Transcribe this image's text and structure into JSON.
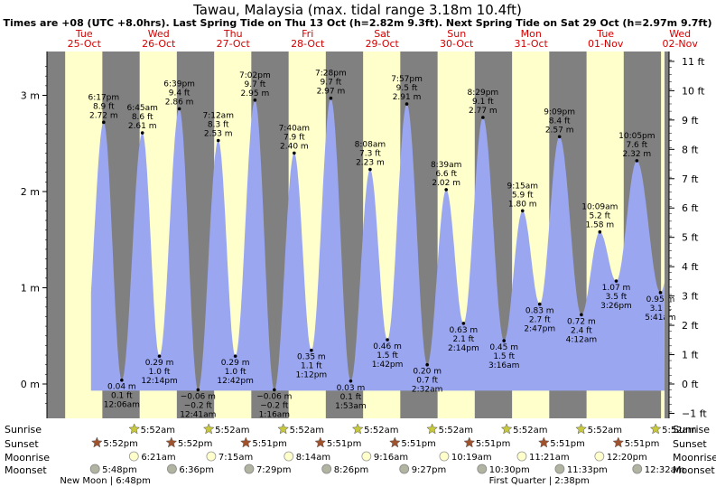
{
  "chart_data": {
    "type": "area",
    "title": "Tawau, Malaysia (max. tidal range 3.18m 10.4ft)",
    "subtitle": "Times are +08 (UTC +8.0hrs). Last Spring Tide on Thu 13 Oct (h=2.82m 9.3ft). Next Spring Tide on Sat 29 Oct (h=2.97m 9.7ft)",
    "x_unit": "hours since Tue 25-Oct 00:00",
    "xlim": [
      0,
      199
    ],
    "ylim_m": [
      -0.3,
      3.4
    ],
    "ylim_ft": [
      -1.2,
      11.2
    ],
    "days": [
      {
        "dow": "Tue",
        "date": "25-Oct"
      },
      {
        "dow": "Wed",
        "date": "26-Oct"
      },
      {
        "dow": "Thu",
        "date": "27-Oct"
      },
      {
        "dow": "Fri",
        "date": "28-Oct"
      },
      {
        "dow": "Sat",
        "date": "29-Oct"
      },
      {
        "dow": "Sun",
        "date": "30-Oct"
      },
      {
        "dow": "Mon",
        "date": "31-Oct"
      },
      {
        "dow": "Tue",
        "date": "01-Nov"
      },
      {
        "dow": "Wed",
        "date": "02-Nov"
      }
    ],
    "left_ticks": [
      {
        "v": 0,
        "label": "0 m"
      },
      {
        "v": 1,
        "label": "1 m"
      },
      {
        "v": 2,
        "label": "2 m"
      },
      {
        "v": 3,
        "label": "3 m"
      }
    ],
    "right_ticks": [
      {
        "v": -1,
        "label": "−1 ft"
      },
      {
        "v": 0,
        "label": "0 ft"
      },
      {
        "v": 1,
        "label": "1 ft"
      },
      {
        "v": 2,
        "label": "2 ft"
      },
      {
        "v": 3,
        "label": "3 ft"
      },
      {
        "v": 4,
        "label": "4 ft"
      },
      {
        "v": 5,
        "label": "5 ft"
      },
      {
        "v": 6,
        "label": "6 ft"
      },
      {
        "v": 7,
        "label": "7 ft"
      },
      {
        "v": 8,
        "label": "8 ft"
      },
      {
        "v": 9,
        "label": "9 ft"
      },
      {
        "v": 10,
        "label": "10 ft"
      },
      {
        "v": 11,
        "label": "11 ft"
      }
    ],
    "tides": [
      {
        "t": 18.28,
        "h": 2.72,
        "time": "6:17 pm",
        "ft": "8.9 ft",
        "m": "2.72 m",
        "type": "high"
      },
      {
        "t": 24.1,
        "h": 0.04,
        "time": "12:06 am",
        "ft": "0.1 ft",
        "m": "0.04 m",
        "type": "low"
      },
      {
        "t": 30.75,
        "h": 2.61,
        "time": "6:45 am",
        "ft": "8.6 ft",
        "m": "2.61 m",
        "type": "high"
      },
      {
        "t": 36.23,
        "h": 0.29,
        "time": "12:14 pm",
        "ft": "1.0 ft",
        "m": "0.29 m",
        "type": "low"
      },
      {
        "t": 42.65,
        "h": 2.86,
        "time": "6:39 pm",
        "ft": "9.4 ft",
        "m": "2.86 m",
        "type": "high"
      },
      {
        "t": 48.68,
        "h": -0.06,
        "time": "12:41 am",
        "ft": "−0.2 ft",
        "m": "−0.06 m",
        "type": "low"
      },
      {
        "t": 55.2,
        "h": 2.53,
        "time": "7:12 am",
        "ft": "8.3 ft",
        "m": "2.53 m",
        "type": "high"
      },
      {
        "t": 60.7,
        "h": 0.29,
        "time": "12:42 pm",
        "ft": "1.0 ft",
        "m": "0.29 m",
        "type": "low"
      },
      {
        "t": 67.03,
        "h": 2.95,
        "time": "7:02 pm",
        "ft": "9.7 ft",
        "m": "2.95 m",
        "type": "high"
      },
      {
        "t": 73.27,
        "h": -0.06,
        "time": "1:16 am",
        "ft": "−0.2 ft",
        "m": "−0.06 m",
        "type": "low"
      },
      {
        "t": 79.67,
        "h": 2.4,
        "time": "7:40 am",
        "ft": "7.9 ft",
        "m": "2.40 m",
        "type": "high"
      },
      {
        "t": 85.2,
        "h": 0.35,
        "time": "1:12 pm",
        "ft": "1.1 ft",
        "m": "0.35 m",
        "type": "low"
      },
      {
        "t": 91.47,
        "h": 2.97,
        "time": "7:28 pm",
        "ft": "9.7 ft",
        "m": "2.97 m",
        "type": "high"
      },
      {
        "t": 97.88,
        "h": 0.03,
        "time": "1:53 am",
        "ft": "0.1 ft",
        "m": "0.03 m",
        "type": "low"
      },
      {
        "t": 104.13,
        "h": 2.23,
        "time": "8:08 am",
        "ft": "7.3 ft",
        "m": "2.23 m",
        "type": "high"
      },
      {
        "t": 109.7,
        "h": 0.46,
        "time": "1:42 pm",
        "ft": "1.5 ft",
        "m": "0.46 m",
        "type": "low"
      },
      {
        "t": 115.95,
        "h": 2.91,
        "time": "7:57 pm",
        "ft": "9.5 ft",
        "m": "2.91 m",
        "type": "high"
      },
      {
        "t": 122.53,
        "h": 0.2,
        "time": "2:32 am",
        "ft": "0.7 ft",
        "m": "0.20 m",
        "type": "low"
      },
      {
        "t": 128.65,
        "h": 2.02,
        "time": "8:39 am",
        "ft": "6.6 ft",
        "m": "2.02 m",
        "type": "high"
      },
      {
        "t": 134.23,
        "h": 0.63,
        "time": "2:14 pm",
        "ft": "2.1 ft",
        "m": "0.63 m",
        "type": "low"
      },
      {
        "t": 140.48,
        "h": 2.77,
        "time": "8:29 pm",
        "ft": "9.1 ft",
        "m": "2.77 m",
        "type": "high"
      },
      {
        "t": 147.27,
        "h": 0.45,
        "time": "3:16 am",
        "ft": "1.5 ft",
        "m": "0.45 m",
        "type": "low"
      },
      {
        "t": 153.25,
        "h": 1.8,
        "time": "9:15 am",
        "ft": "5.9 ft",
        "m": "1.80 m",
        "type": "high"
      },
      {
        "t": 158.78,
        "h": 0.83,
        "time": "2:47 pm",
        "ft": "2.7 ft",
        "m": "0.83 m",
        "type": "low"
      },
      {
        "t": 165.15,
        "h": 2.57,
        "time": "9:09 pm",
        "ft": "8.4 ft",
        "m": "2.57 m",
        "type": "high"
      },
      {
        "t": 172.2,
        "h": 0.72,
        "time": "4:12 am",
        "ft": "2.4 ft",
        "m": "0.72 m",
        "type": "low"
      },
      {
        "t": 178.15,
        "h": 1.58,
        "time": "10:09 am",
        "ft": "5.2 ft",
        "m": "1.58 m",
        "type": "high"
      },
      {
        "t": 183.43,
        "h": 1.07,
        "time": "3:26 pm",
        "ft": "3.5 ft",
        "m": "1.07 m",
        "type": "low"
      },
      {
        "t": 190.08,
        "h": 2.32,
        "time": "10:05 pm",
        "ft": "7.6 ft",
        "m": "2.32 m",
        "type": "high"
      },
      {
        "t": 197.68,
        "h": 0.95,
        "time": "5:41 am",
        "ft": "3.1 ft",
        "m": "0.95 m",
        "type": "low"
      }
    ],
    "sunrise": {
      "label": "Sunrise",
      "time": "5:52am",
      "hour": 5.87
    },
    "sunset": {
      "label": "Sunset",
      "times": [
        "5:52pm",
        "5:52pm",
        "5:51pm",
        "5:51pm",
        "5:51pm",
        "5:51pm",
        "5:51pm",
        "5:51pm"
      ],
      "hour": 17.85
    },
    "moonrise": {
      "label": "Moonrise",
      "events": [
        {
          "t": 30.35,
          "time": "6:21am"
        },
        {
          "t": 55.25,
          "time": "7:15am"
        },
        {
          "t": 80.23,
          "time": "8:14am"
        },
        {
          "t": 105.27,
          "time": "9:16am"
        },
        {
          "t": 130.32,
          "time": "10:19am"
        },
        {
          "t": 155.35,
          "time": "11:21am"
        },
        {
          "t": 180.33,
          "time": "12:20pm"
        }
      ]
    },
    "moonset": {
      "label": "Moonset",
      "events": [
        {
          "t": 17.8,
          "time": "5:48pm"
        },
        {
          "t": 42.6,
          "time": "6:36pm"
        },
        {
          "t": 67.48,
          "time": "7:29pm"
        },
        {
          "t": 92.43,
          "time": "8:26pm"
        },
        {
          "t": 117.45,
          "time": "9:27pm"
        },
        {
          "t": 142.5,
          "time": "10:30pm"
        },
        {
          "t": 167.55,
          "time": "11:33pm"
        },
        {
          "t": 192.53,
          "time": "12:32am"
        }
      ]
    },
    "moon_phases": [
      {
        "text": "New Moon | 6:48pm",
        "t": 18.8
      },
      {
        "text": "First Quarter | 2:38pm",
        "t": 158.63
      }
    ]
  }
}
